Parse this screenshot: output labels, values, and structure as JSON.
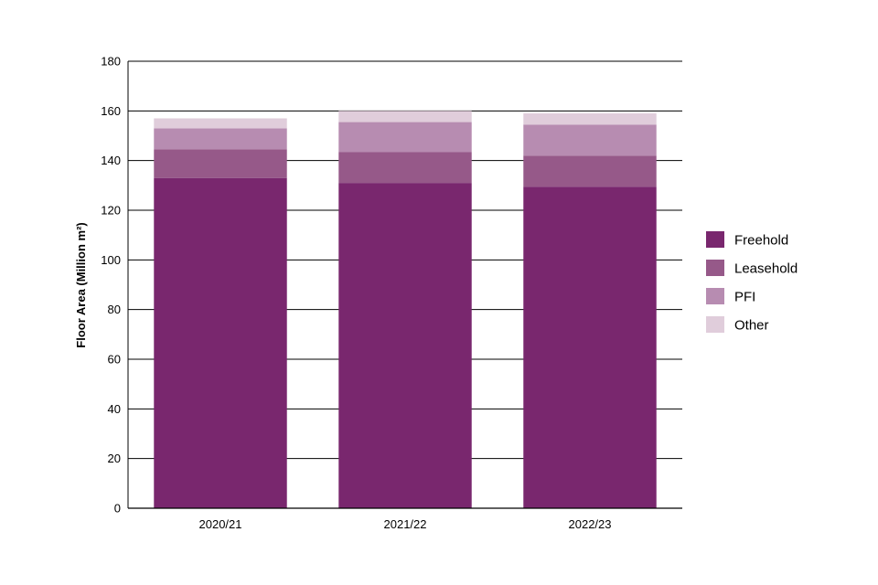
{
  "chart_data": {
    "type": "bar",
    "stacked": true,
    "categories": [
      "2020/21",
      "2021/22",
      "2022/23"
    ],
    "series": [
      {
        "name": "Freehold",
        "values": [
          133,
          131,
          129.5
        ],
        "color": "#79276e"
      },
      {
        "name": "Leasehold",
        "values": [
          11.5,
          12.5,
          12.5
        ],
        "color": "#965989"
      },
      {
        "name": "PFI",
        "values": [
          8.5,
          12,
          12.5
        ],
        "color": "#b78cb1"
      },
      {
        "name": "Other",
        "values": [
          4,
          4.5,
          4.5
        ],
        "color": "#e0cddb"
      }
    ],
    "title": "",
    "xlabel": "",
    "ylabel": "Floor Area (Million m²)",
    "ylim": [
      0,
      180
    ],
    "yticks": [
      "0",
      "20",
      "40",
      "60",
      "80",
      "100",
      "120",
      "140",
      "160",
      "180"
    ],
    "grid": true,
    "legend": "right"
  }
}
